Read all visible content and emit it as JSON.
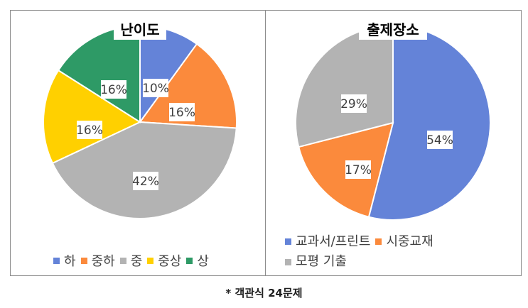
{
  "chart_data": [
    {
      "type": "pie",
      "title": "난이도",
      "categories": [
        "하",
        "중하",
        "중",
        "중상",
        "상"
      ],
      "values": [
        10,
        16,
        42,
        16,
        16
      ],
      "labels": [
        "10%",
        "16%",
        "42%",
        "16%",
        "16%"
      ],
      "colors": [
        "#6483d8",
        "#fb8a3c",
        "#b3b3b3",
        "#ffd000",
        "#2e9a66"
      ],
      "legend": "bottom"
    },
    {
      "type": "pie",
      "title": "출제장소",
      "categories": [
        "교과서/프린트",
        "시중교재",
        "모평 기출"
      ],
      "values": [
        54,
        17,
        29
      ],
      "labels": [
        "54%",
        "17%",
        "29%"
      ],
      "colors": [
        "#6483d8",
        "#fb8a3c",
        "#b3b3b3"
      ],
      "legend": "bottom"
    }
  ],
  "footnote": "* 객관식 24문제"
}
